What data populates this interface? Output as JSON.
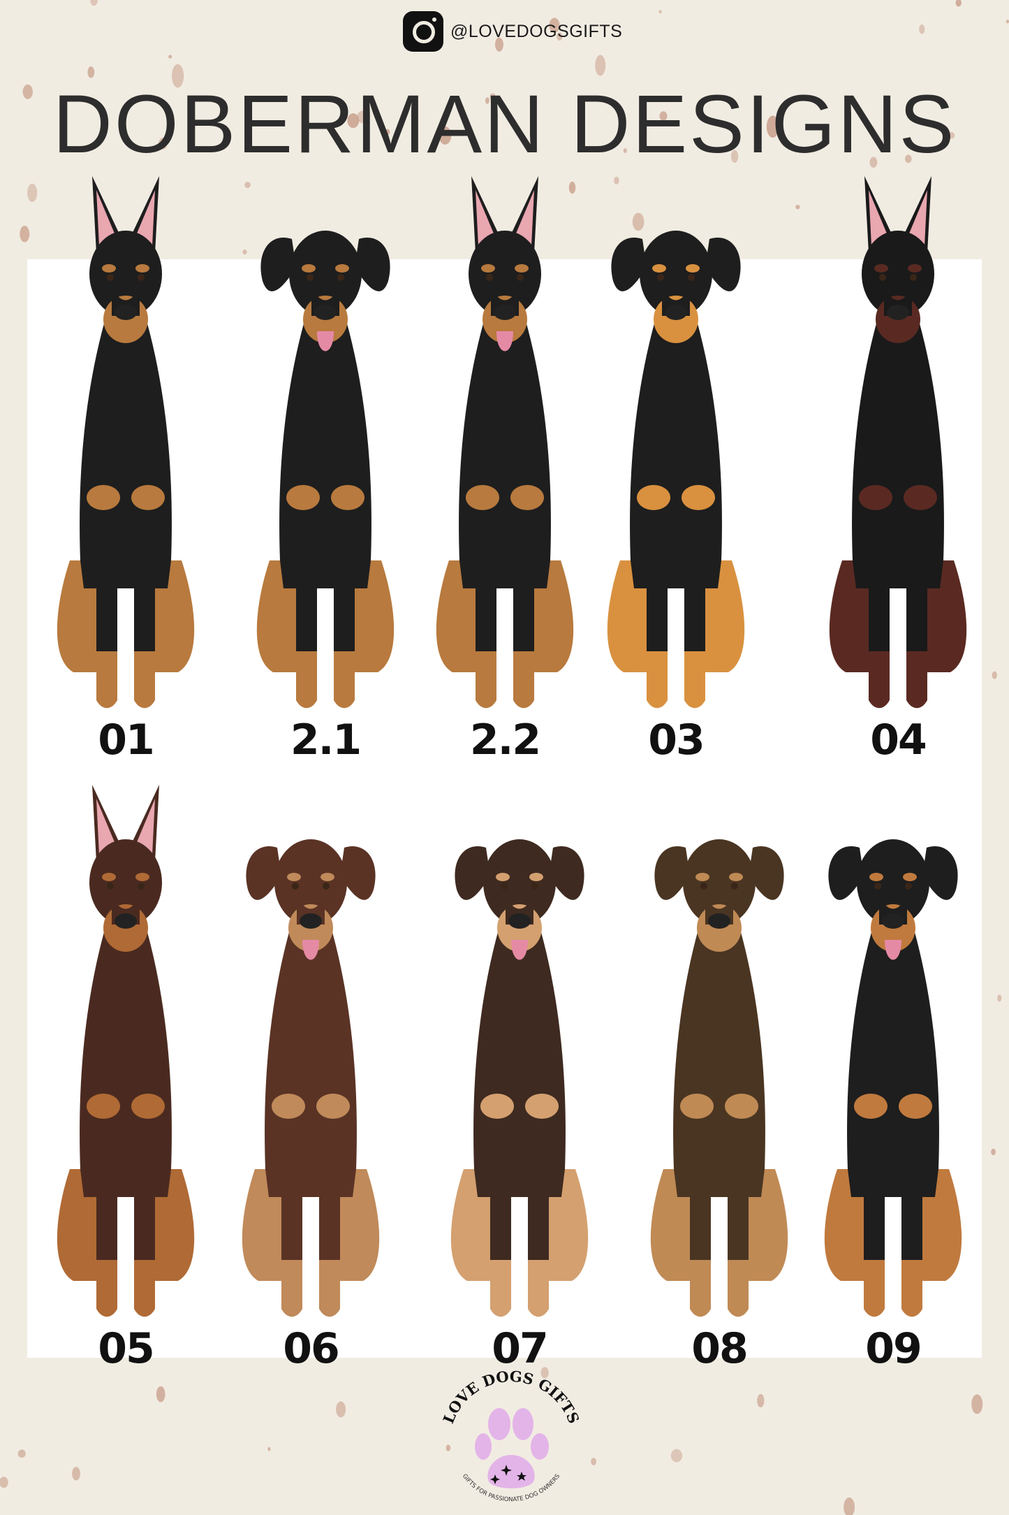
{
  "header": {
    "instagram_icon": "instagram-icon",
    "handle": "@LOVEDOGSGIFTS"
  },
  "title": "DOBERMAN DESIGNS",
  "colors": {
    "background": "#f1ece2",
    "panel": "#ffffff",
    "speckle": "#c9a08c",
    "paw": "#e3b4e8"
  },
  "dogs": [
    {
      "label": "01",
      "coat": "#1e1e1e",
      "tan": "#b87a3e",
      "ears": "cropped",
      "tongue": false
    },
    {
      "label": "2.1",
      "coat": "#1e1e1e",
      "tan": "#b87a3e",
      "ears": "floppy",
      "tongue": true
    },
    {
      "label": "2.2",
      "coat": "#1e1e1e",
      "tan": "#b87a3e",
      "ears": "cropped",
      "tongue": true
    },
    {
      "label": "03",
      "coat": "#1e1e1e",
      "tan": "#d9913f",
      "ears": "floppy",
      "tongue": false
    },
    {
      "label": "04",
      "coat": "#1a1a1a",
      "tan": "#5a2a22",
      "ears": "cropped",
      "tongue": false
    },
    {
      "label": "05",
      "coat": "#4a2a20",
      "tan": "#b06a35",
      "ears": "cropped",
      "tongue": false
    },
    {
      "label": "06",
      "coat": "#5a3325",
      "tan": "#c08a5a",
      "ears": "floppy",
      "tongue": true
    },
    {
      "label": "07",
      "coat": "#3e2a20",
      "tan": "#d4a070",
      "ears": "floppy",
      "tongue": true
    },
    {
      "label": "08",
      "coat": "#4a3522",
      "tan": "#c08a55",
      "ears": "floppy",
      "tongue": false
    },
    {
      "label": "09",
      "coat": "#1e1e1e",
      "tan": "#c07a3e",
      "ears": "floppy",
      "tongue": true
    }
  ],
  "logo": {
    "name": "LOVE DOGS GIFTS",
    "tagline": "GIFTS FOR PASSIONATE DOG OWNERS"
  }
}
